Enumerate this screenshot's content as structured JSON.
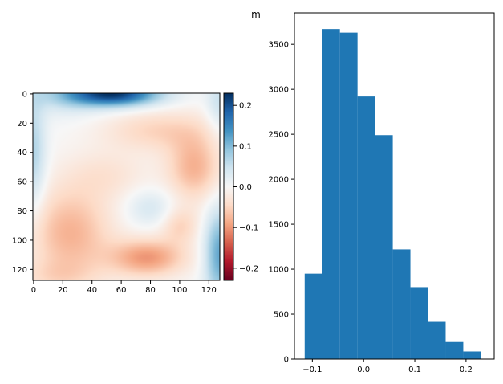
{
  "chart_data": [
    {
      "type": "heatmap",
      "title": "",
      "xlabel": "",
      "ylabel": "",
      "xlim": [
        0,
        127
      ],
      "ylim": [
        127,
        0
      ],
      "x_ticks": [
        "0",
        "20",
        "40",
        "60",
        "80",
        "100",
        "120"
      ],
      "y_ticks": [
        "0",
        "20",
        "40",
        "60",
        "80",
        "100",
        "120"
      ],
      "colormap": "RdBu",
      "colormap_stops": [
        "#67001f",
        "#b2182b",
        "#d6604d",
        "#f4a582",
        "#fddbc7",
        "#f7f7f7",
        "#d1e5f0",
        "#92c5de",
        "#4393c3",
        "#2166ac",
        "#053061"
      ],
      "colorbar": {
        "vmin": -0.23,
        "vmax": 0.23,
        "ticks": [
          -0.2,
          -0.1,
          0.0,
          0.1,
          0.2
        ],
        "tick_labels": [
          "−0.2",
          "−0.1",
          "0.0",
          "0.1",
          "0.2"
        ]
      },
      "features": [
        {
          "x": 55,
          "y": 0,
          "sx": 22,
          "sy": 6,
          "value": 0.22
        },
        {
          "x": 22,
          "y": 0,
          "sx": 18,
          "sy": 10,
          "value": 0.05
        },
        {
          "x": 0,
          "y": 40,
          "sx": 6,
          "sy": 28,
          "value": 0.07
        },
        {
          "x": 127,
          "y": 110,
          "sx": 7,
          "sy": 22,
          "value": 0.12
        },
        {
          "x": 127,
          "y": 5,
          "sx": 6,
          "sy": 15,
          "value": 0.05
        },
        {
          "x": 85,
          "y": 25,
          "sx": 26,
          "sy": 10,
          "value": -0.05
        },
        {
          "x": 110,
          "y": 50,
          "sx": 13,
          "sy": 16,
          "value": -0.08
        },
        {
          "x": 50,
          "y": 55,
          "sx": 20,
          "sy": 12,
          "value": -0.03
        },
        {
          "x": 25,
          "y": 95,
          "sx": 20,
          "sy": 22,
          "value": -0.08
        },
        {
          "x": 78,
          "y": 112,
          "sx": 18,
          "sy": 9,
          "value": -0.1
        },
        {
          "x": 100,
          "y": 90,
          "sx": 9,
          "sy": 9,
          "value": -0.05
        },
        {
          "x": 80,
          "y": 78,
          "sx": 12,
          "sy": 9,
          "value": 0.04
        },
        {
          "x": 15,
          "y": 125,
          "sx": 20,
          "sy": 8,
          "value": -0.03
        }
      ]
    },
    {
      "type": "bar",
      "title": "m",
      "xlabel": "",
      "ylabel": "",
      "xlim": [
        -0.135,
        0.255
      ],
      "ylim": [
        0,
        3850
      ],
      "x_ticks": [
        -0.1,
        0.0,
        0.1,
        0.2
      ],
      "x_tick_labels": [
        "−0.1",
        "0.0",
        "0.1",
        "0.2"
      ],
      "y_ticks": [
        0,
        500,
        1000,
        1500,
        2000,
        2500,
        3000,
        3500
      ],
      "bin_edges": [
        -0.115,
        -0.0806,
        -0.0462,
        -0.0118,
        0.0226,
        0.057,
        0.0914,
        0.1258,
        0.1602,
        0.1946,
        0.229
      ],
      "counts": [
        950,
        3670,
        3630,
        2920,
        2490,
        1220,
        800,
        415,
        190,
        85
      ],
      "color": "#1f77b4"
    }
  ]
}
